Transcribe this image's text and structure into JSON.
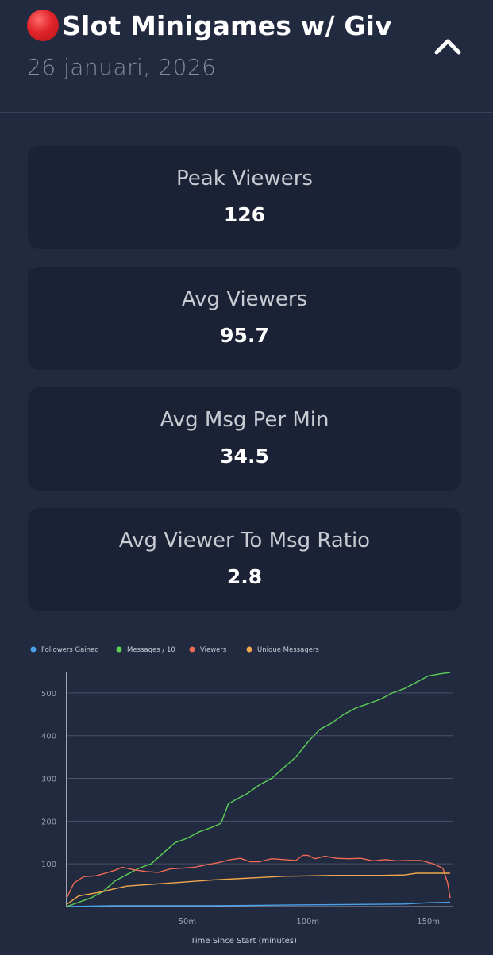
{
  "header": {
    "title": "Slot Minigames w/ Giv",
    "live_icon": "red-circle-icon",
    "date": "26 januari, 2026",
    "collapse_icon": "chevron-up-icon"
  },
  "stats": [
    {
      "label": "Peak Viewers",
      "value": "126"
    },
    {
      "label": "Avg Viewers",
      "value": "95.7"
    },
    {
      "label": "Avg Msg Per Min",
      "value": "34.5"
    },
    {
      "label": "Avg Viewer To Msg Ratio",
      "value": "2.8"
    }
  ],
  "colors": {
    "background": "#222a40",
    "card": "#1c2235",
    "followers": "#4aa3ea",
    "messages": "#5ccf55",
    "viewers": "#ee6a55",
    "unique": "#f0a84a"
  },
  "chart_data": {
    "type": "line",
    "xlabel": "Time Since Start (minutes)",
    "ylabel": "",
    "xlim": [
      0,
      160
    ],
    "ylim": [
      0,
      550
    ],
    "x_ticks": [
      {
        "value": 50,
        "label": "50m"
      },
      {
        "value": 100,
        "label": "100m"
      },
      {
        "value": 150,
        "label": "150m"
      }
    ],
    "y_ticks": [
      100,
      200,
      300,
      400,
      500
    ],
    "grid": true,
    "legend_position": "top-left",
    "series": [
      {
        "name": "Followers Gained",
        "color": "#4aa3ea",
        "points": [
          [
            0,
            0
          ],
          [
            20,
            2
          ],
          [
            40,
            2
          ],
          [
            60,
            2
          ],
          [
            80,
            3
          ],
          [
            100,
            4
          ],
          [
            120,
            5
          ],
          [
            140,
            6
          ],
          [
            150,
            9
          ],
          [
            159,
            10
          ]
        ]
      },
      {
        "name": "Messages / 10",
        "color": "#5ccf55",
        "points": [
          [
            0,
            0
          ],
          [
            5,
            10
          ],
          [
            10,
            20
          ],
          [
            15,
            35
          ],
          [
            20,
            60
          ],
          [
            25,
            75
          ],
          [
            30,
            90
          ],
          [
            35,
            100
          ],
          [
            40,
            125
          ],
          [
            45,
            150
          ],
          [
            50,
            160
          ],
          [
            55,
            175
          ],
          [
            60,
            185
          ],
          [
            64,
            195
          ],
          [
            67,
            240
          ],
          [
            70,
            250
          ],
          [
            75,
            265
          ],
          [
            80,
            285
          ],
          [
            85,
            300
          ],
          [
            90,
            325
          ],
          [
            95,
            350
          ],
          [
            100,
            385
          ],
          [
            105,
            415
          ],
          [
            110,
            430
          ],
          [
            115,
            450
          ],
          [
            120,
            465
          ],
          [
            125,
            475
          ],
          [
            130,
            485
          ],
          [
            135,
            500
          ],
          [
            140,
            510
          ],
          [
            145,
            525
          ],
          [
            150,
            540
          ],
          [
            155,
            545
          ],
          [
            159,
            548
          ]
        ]
      },
      {
        "name": "Viewers",
        "color": "#ee6a55",
        "points": [
          [
            0,
            20
          ],
          [
            3,
            55
          ],
          [
            7,
            70
          ],
          [
            12,
            72
          ],
          [
            16,
            78
          ],
          [
            20,
            85
          ],
          [
            23,
            92
          ],
          [
            28,
            86
          ],
          [
            33,
            82
          ],
          [
            38,
            80
          ],
          [
            43,
            88
          ],
          [
            48,
            90
          ],
          [
            53,
            92
          ],
          [
            58,
            98
          ],
          [
            63,
            103
          ],
          [
            68,
            110
          ],
          [
            72,
            113
          ],
          [
            76,
            105
          ],
          [
            80,
            105
          ],
          [
            85,
            112
          ],
          [
            90,
            110
          ],
          [
            95,
            108
          ],
          [
            98,
            120
          ],
          [
            100,
            120
          ],
          [
            103,
            112
          ],
          [
            107,
            118
          ],
          [
            112,
            113
          ],
          [
            117,
            112
          ],
          [
            122,
            113
          ],
          [
            127,
            107
          ],
          [
            132,
            110
          ],
          [
            137,
            107
          ],
          [
            142,
            108
          ],
          [
            147,
            108
          ],
          [
            152,
            100
          ],
          [
            156,
            90
          ],
          [
            158,
            55
          ],
          [
            159,
            20
          ]
        ]
      },
      {
        "name": "Unique Messagers",
        "color": "#f0a84a",
        "points": [
          [
            0,
            5
          ],
          [
            5,
            25
          ],
          [
            10,
            30
          ],
          [
            15,
            35
          ],
          [
            20,
            42
          ],
          [
            25,
            48
          ],
          [
            30,
            50
          ],
          [
            35,
            52
          ],
          [
            40,
            54
          ],
          [
            45,
            56
          ],
          [
            50,
            58
          ],
          [
            55,
            60
          ],
          [
            60,
            62
          ],
          [
            70,
            65
          ],
          [
            80,
            68
          ],
          [
            90,
            71
          ],
          [
            100,
            72
          ],
          [
            110,
            73
          ],
          [
            120,
            73
          ],
          [
            130,
            73
          ],
          [
            140,
            74
          ],
          [
            145,
            78
          ],
          [
            150,
            78
          ],
          [
            159,
            78
          ]
        ]
      }
    ]
  }
}
